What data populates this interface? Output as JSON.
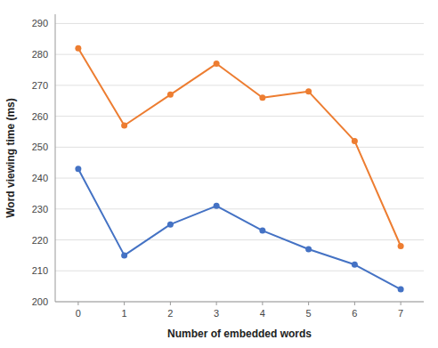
{
  "chart_data": {
    "type": "line",
    "xlabel": "Number of embedded words",
    "ylabel": "Word viewing time (ms)",
    "x": [
      0,
      1,
      2,
      3,
      4,
      5,
      6,
      7
    ],
    "series": [
      {
        "color": "#4472C4",
        "marker": "circle",
        "values": [
          243,
          215,
          225,
          231,
          223,
          217,
          212,
          204
        ]
      },
      {
        "color": "#ED7D31",
        "marker": "circle",
        "values": [
          282,
          257,
          267,
          277,
          266,
          268,
          252,
          218
        ]
      }
    ],
    "xlim": [
      -0.5,
      7.5
    ],
    "xticks": [
      0,
      1,
      2,
      3,
      4,
      5,
      6,
      7
    ],
    "ylim": [
      200,
      293
    ],
    "yticks": [
      200,
      210,
      220,
      230,
      240,
      250,
      260,
      270,
      280,
      290
    ],
    "grid": true
  }
}
